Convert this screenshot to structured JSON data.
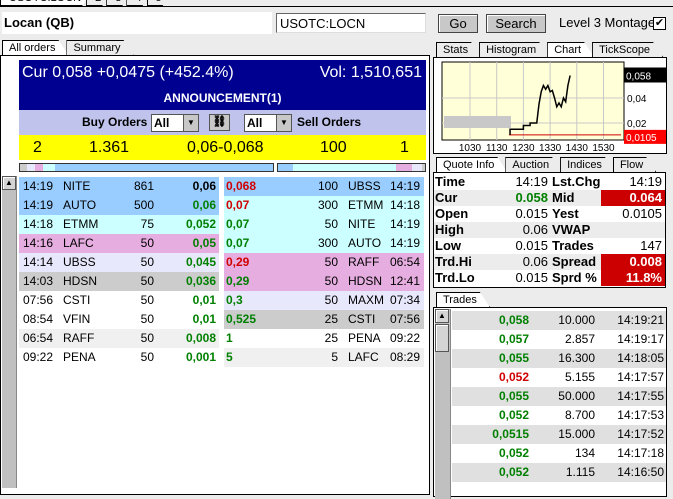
{
  "window_tabs": [
    "USOTC:LOCN",
    "2",
    "3",
    "4",
    "5"
  ],
  "header": {
    "title": "Locan (QB)",
    "symbol_value": "USOTC:LOCN",
    "go_label": "Go",
    "search_label": "Search",
    "level3_label": "Level 3 Montage",
    "level3_checked": true
  },
  "left_tabs": [
    "All orders",
    "Summary"
  ],
  "summary": {
    "cur": "Cur 0,058 +0,0475 (+452.4%)",
    "vol": "Vol: 1,510,651",
    "announcement": "ANNOUNCEMENT(1)"
  },
  "filters": {
    "buy_label": "Buy Orders",
    "buy_value": "All",
    "sell_value": "All",
    "sell_label": "Sell Orders",
    "link_icon": "link-icon"
  },
  "inside": {
    "bid_count": "2",
    "bid_size": "1.361",
    "bid_ask": "0,06-0,068",
    "ask_size": "100",
    "ask_count": "1"
  },
  "colors": {
    "level1": "#99ccff",
    "level2": "#ccffff",
    "level3": "#e6aee0",
    "level4": "#e8e8fc",
    "level5": "#cccccc",
    "alt": "#f0f0f0",
    "up": "#008000",
    "down": "#d00000",
    "header": "#000090"
  },
  "bids": [
    {
      "time": "14:19",
      "mm": "NITE",
      "size": "861",
      "price": "0,06",
      "color": "black",
      "bg": "#99ccff"
    },
    {
      "time": "14:19",
      "mm": "AUTO",
      "size": "500",
      "price": "0,06",
      "color": "green",
      "bg": "#99ccff"
    },
    {
      "time": "14:18",
      "mm": "ETMM",
      "size": "75",
      "price": "0,052",
      "color": "green",
      "bg": "#ccffff"
    },
    {
      "time": "14:16",
      "mm": "LAFC",
      "size": "50",
      "price": "0,05",
      "color": "green",
      "bg": "#e6aee0"
    },
    {
      "time": "14:14",
      "mm": "UBSS",
      "size": "50",
      "price": "0,045",
      "color": "green",
      "bg": "#e8e8fc"
    },
    {
      "time": "14:03",
      "mm": "HDSN",
      "size": "50",
      "price": "0,036",
      "color": "green",
      "bg": "#cccccc"
    },
    {
      "time": "07:56",
      "mm": "CSTI",
      "size": "50",
      "price": "0,01",
      "color": "green",
      "bg": "#ffffff"
    },
    {
      "time": "08:54",
      "mm": "VFIN",
      "size": "50",
      "price": "0,01",
      "color": "green",
      "bg": "#ffffff"
    },
    {
      "time": "06:54",
      "mm": "RAFF",
      "size": "50",
      "price": "0,008",
      "color": "green",
      "bg": "#f0f0f0"
    },
    {
      "time": "09:22",
      "mm": "PENA",
      "size": "50",
      "price": "0,001",
      "color": "green",
      "bg": "#ffffff"
    }
  ],
  "asks": [
    {
      "price": "0,068",
      "size": "100",
      "mm": "UBSS",
      "time": "14:19",
      "color": "red",
      "bg": "#99ccff"
    },
    {
      "price": "0,07",
      "size": "300",
      "mm": "ETMM",
      "time": "14:18",
      "color": "red",
      "bg": "#ccffff"
    },
    {
      "price": "0,07",
      "size": "50",
      "mm": "NITE",
      "time": "14:19",
      "color": "green",
      "bg": "#ccffff"
    },
    {
      "price": "0,07",
      "size": "300",
      "mm": "AUTO",
      "time": "14:19",
      "color": "green",
      "bg": "#ccffff"
    },
    {
      "price": "0,29",
      "size": "50",
      "mm": "RAFF",
      "time": "06:54",
      "color": "red",
      "bg": "#e6aee0"
    },
    {
      "price": "0,29",
      "size": "50",
      "mm": "HDSN",
      "time": "12:41",
      "color": "green",
      "bg": "#e6aee0"
    },
    {
      "price": "0,3",
      "size": "50",
      "mm": "MAXM",
      "time": "07:34",
      "color": "green",
      "bg": "#e8e8fc"
    },
    {
      "price": "0,525",
      "size": "25",
      "mm": "CSTI",
      "time": "07:56",
      "color": "green",
      "bg": "#cccccc"
    },
    {
      "price": "1",
      "size": "25",
      "mm": "PENA",
      "time": "09:22",
      "color": "green",
      "bg": "#ffffff"
    },
    {
      "price": "5",
      "size": "5",
      "mm": "LAFC",
      "time": "08:29",
      "color": "green",
      "bg": "#f0f0f0"
    }
  ],
  "right_tabs": [
    "Stats",
    "Histogram",
    "Chart",
    "TickScope"
  ],
  "chart_data": {
    "type": "line",
    "x_ticks": [
      "1030",
      "1130",
      "1230",
      "1330",
      "1430",
      "1530"
    ],
    "y_ticks": [
      "0,04",
      "0,02"
    ],
    "cur_label": "0,058",
    "yest_label": "0,0105",
    "x": [
      1200,
      1200,
      1230,
      1230,
      1245,
      1245,
      1300,
      1305,
      1310,
      1315,
      1320,
      1325,
      1330,
      1335,
      1340,
      1345,
      1350,
      1355,
      1400,
      1405,
      1410,
      1415
    ],
    "y": [
      0.0105,
      0.015,
      0.015,
      0.018,
      0.018,
      0.02,
      0.02,
      0.035,
      0.045,
      0.05,
      0.047,
      0.05,
      0.045,
      0.046,
      0.04,
      0.033,
      0.036,
      0.033,
      0.04,
      0.037,
      0.05,
      0.058
    ]
  },
  "quote_tabs": [
    "Quote Info",
    "Auction",
    "Indices",
    "Flow"
  ],
  "quote": [
    {
      "l1": "Time",
      "v1": "14:19",
      "l2": "Lst.Chg",
      "v2": "14:19",
      "red": false
    },
    {
      "l1": "Cur",
      "v1": "0.058",
      "l2": "Mid",
      "v2": "0.064",
      "red": true
    },
    {
      "l1": "Open",
      "v1": "0.015",
      "l2": "Yest",
      "v2": "0.0105",
      "red": false
    },
    {
      "l1": "High",
      "v1": "0.06",
      "l2": "VWAP",
      "v2": "",
      "red": false
    },
    {
      "l1": "Low",
      "v1": "0.015",
      "l2": "Trades",
      "v2": "147",
      "red": false
    },
    {
      "l1": "Trd.Hi",
      "v1": "0.06",
      "l2": "Spread",
      "v2": "0.008",
      "red": true
    },
    {
      "l1": "Trd.Lo",
      "v1": "0.015",
      "l2": "Sprd %",
      "v2": "11.8%",
      "red": true
    }
  ],
  "trades_tab": "Trades",
  "trades": [
    {
      "price": "0,058",
      "size": "10.000",
      "time": "14:19:21",
      "color": "green"
    },
    {
      "price": "0,057",
      "size": "2.857",
      "time": "14:19:17",
      "color": "green"
    },
    {
      "price": "0,055",
      "size": "16.300",
      "time": "14:18:05",
      "color": "green"
    },
    {
      "price": "0,052",
      "size": "5.155",
      "time": "14:17:57",
      "color": "red"
    },
    {
      "price": "0,055",
      "size": "50.000",
      "time": "14:17:55",
      "color": "green"
    },
    {
      "price": "0,052",
      "size": "8.700",
      "time": "14:17:53",
      "color": "green"
    },
    {
      "price": "0,0515",
      "size": "15.000",
      "time": "14:17:52",
      "color": "green"
    },
    {
      "price": "0,052",
      "size": "134",
      "time": "14:17:18",
      "color": "green"
    },
    {
      "price": "0,052",
      "size": "1.115",
      "time": "14:16:50",
      "color": "green"
    }
  ]
}
